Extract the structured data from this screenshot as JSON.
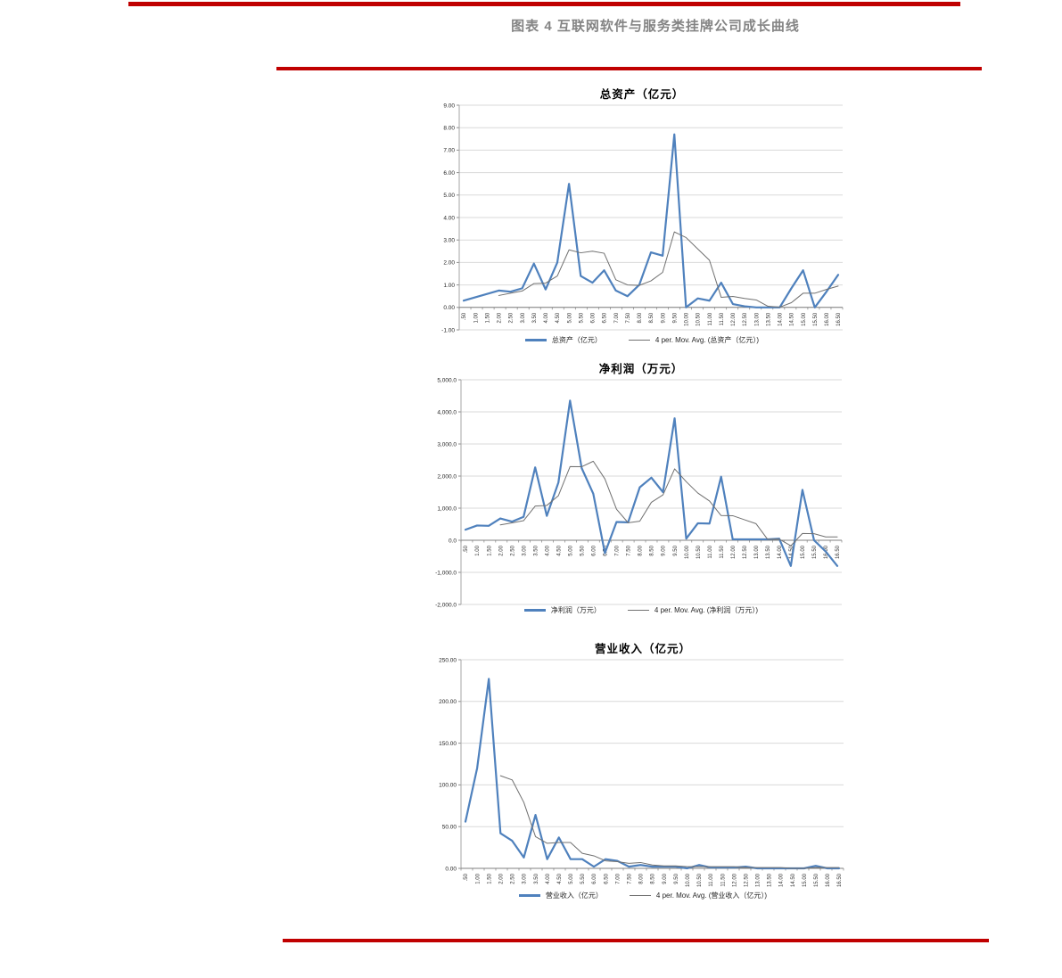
{
  "page": {
    "title": "图表 4 互联网软件与服务类挂牌公司成长曲线",
    "colors": {
      "accent_rule": "#C00000",
      "heading_text": "#848484",
      "series_blue": "#4F81BD",
      "series_gray": "#707070",
      "gridline": "#D9D9D9"
    }
  },
  "chart_data": [
    {
      "type": "line",
      "title": "总资产（亿元）",
      "xlabel": "",
      "ylabel": "",
      "ylim": [
        -1,
        9
      ],
      "grid": true,
      "legend_position": "bottom",
      "yticks": [
        {
          "v": 9,
          "label": "9.00"
        },
        {
          "v": 8,
          "label": "8.00"
        },
        {
          "v": 7,
          "label": "7.00"
        },
        {
          "v": 6,
          "label": "6.00"
        },
        {
          "v": 5,
          "label": "5.00"
        },
        {
          "v": 4,
          "label": "4.00"
        },
        {
          "v": 3,
          "label": "3.00"
        },
        {
          "v": 2,
          "label": "2.00"
        },
        {
          "v": 1,
          "label": "1.00"
        },
        {
          "v": 0,
          "label": "0.00"
        },
        {
          "v": -1,
          "label": "-1.00"
        }
      ],
      "categories": [
        ".50",
        "1.00",
        "1.50",
        "2.00",
        "2.50",
        "3.00",
        "3.50",
        "4.00",
        "4.50",
        "5.00",
        "5.50",
        "6.00",
        "6.50",
        "7.00",
        "7.50",
        "8.00",
        "8.50",
        "9.00",
        "9.50",
        "10.00",
        "10.50",
        "11.00",
        "11.50",
        "12.00",
        "12.50",
        "13.00",
        "13.50",
        "14.00",
        "14.50",
        "15.00",
        "15.50",
        "16.00",
        "16.50"
      ],
      "series": [
        {
          "name": "总资产（亿元）",
          "color": "#4F81BD",
          "width": 2.2,
          "values": [
            0.3,
            0.45,
            0.6,
            0.75,
            0.7,
            0.85,
            1.95,
            0.8,
            2.0,
            5.5,
            1.4,
            1.1,
            1.65,
            0.75,
            0.5,
            1.0,
            2.45,
            2.3,
            7.7,
            0.0,
            0.4,
            0.3,
            1.1,
            0.15,
            0.05,
            0.0,
            0.0,
            0.0,
            0.85,
            1.65,
            0.0,
            0.7,
            1.45
          ]
        },
        {
          "name": "4 per. Mov. Avg. (总资产（亿元）)",
          "color": "#707070",
          "width": 1,
          "values": [
            null,
            null,
            null,
            0.53,
            0.63,
            0.73,
            1.06,
            1.08,
            1.4,
            2.56,
            2.43,
            2.5,
            2.41,
            1.23,
            1.0,
            0.98,
            1.18,
            1.56,
            3.36,
            3.11,
            2.6,
            2.1,
            0.45,
            0.49,
            0.4,
            0.33,
            0.05,
            0.01,
            0.21,
            0.63,
            0.63,
            0.8,
            0.95
          ]
        }
      ]
    },
    {
      "type": "line",
      "title": "净利润（万元）",
      "xlabel": "",
      "ylabel": "",
      "ylim": [
        -2000,
        5000
      ],
      "grid": true,
      "legend_position": "bottom",
      "yticks": [
        {
          "v": 5000,
          "label": "5,000.0"
        },
        {
          "v": 4000,
          "label": "4,000.0"
        },
        {
          "v": 3000,
          "label": "3,000.0"
        },
        {
          "v": 2000,
          "label": "2,000.0"
        },
        {
          "v": 1000,
          "label": "1,000.0"
        },
        {
          "v": 0,
          "label": "0.0"
        },
        {
          "v": -1000,
          "label": "-1,000.0"
        },
        {
          "v": -2000,
          "label": "-2,000.0"
        }
      ],
      "categories": [
        ".50",
        "1.00",
        "1.50",
        "2.00",
        "2.50",
        "3.00",
        "3.50",
        "4.00",
        "4.50",
        "5.00",
        "5.50",
        "6.00",
        "6.50",
        "7.00",
        "7.50",
        "8.00",
        "8.50",
        "9.00",
        "9.50",
        "10.00",
        "10.50",
        "11.00",
        "11.50",
        "12.00",
        "12.50",
        "13.00",
        "13.50",
        "14.00",
        "14.50",
        "15.00",
        "15.50",
        "16.00",
        "16.50"
      ],
      "series": [
        {
          "name": "净利润（万元）",
          "color": "#4F81BD",
          "width": 2.2,
          "values": [
            330,
            460,
            450,
            680,
            580,
            730,
            2270,
            760,
            1800,
            4350,
            2250,
            1450,
            -400,
            570,
            560,
            1650,
            1950,
            1500,
            3800,
            50,
            530,
            520,
            1980,
            30,
            30,
            30,
            30,
            50,
            -800,
            1570,
            0,
            -350,
            -800
          ]
        },
        {
          "name": "4 per. Mov. Avg. (净利润（万元）)",
          "color": "#707070",
          "width": 1,
          "values": [
            null,
            null,
            null,
            480,
            542,
            610,
            1065,
            1085,
            1390,
            2295,
            2290,
            2462,
            1912,
            968,
            545,
            595,
            1182,
            1415,
            2225,
            1825,
            1470,
            1225,
            770,
            765,
            640,
            518,
            30,
            35,
            -172,
            212,
            205,
            105,
            105
          ]
        }
      ]
    },
    {
      "type": "line",
      "title": "营业收入（亿元）",
      "xlabel": "",
      "ylabel": "",
      "ylim": [
        0,
        250
      ],
      "grid": true,
      "legend_position": "bottom",
      "yticks": [
        {
          "v": 250,
          "label": "250.00"
        },
        {
          "v": 200,
          "label": "200.00"
        },
        {
          "v": 150,
          "label": "150.00"
        },
        {
          "v": 100,
          "label": "100.00"
        },
        {
          "v": 50,
          "label": "50.00"
        },
        {
          "v": 0,
          "label": "0.00"
        }
      ],
      "categories": [
        ".50",
        "1.00",
        "1.50",
        "2.00",
        "2.50",
        "3.00",
        "3.50",
        "4.00",
        "4.50",
        "5.00",
        "5.50",
        "6.00",
        "6.50",
        "7.00",
        "7.50",
        "8.00",
        "8.50",
        "9.00",
        "9.50",
        "10.00",
        "10.50",
        "11.00",
        "11.50",
        "12.00",
        "12.50",
        "13.00",
        "13.50",
        "14.00",
        "14.50",
        "15.00",
        "15.50",
        "16.00",
        "16.50"
      ],
      "series": [
        {
          "name": "营业收入（亿元）",
          "color": "#4F81BD",
          "width": 2.2,
          "values": [
            56,
            120,
            227,
            42,
            33,
            13,
            64,
            11,
            37,
            11,
            11,
            2,
            11,
            9,
            2,
            4,
            2,
            2,
            2,
            0,
            4,
            1,
            1,
            1,
            2,
            0,
            0,
            0,
            0,
            0,
            3,
            0,
            0
          ]
        },
        {
          "name": "4 per. Mov. Avg. (营业收入（亿元）)",
          "color": "#707070",
          "width": 1,
          "values": [
            null,
            null,
            null,
            111,
            106,
            79,
            38,
            30,
            31,
            31,
            18,
            15,
            9,
            8,
            6,
            7,
            4,
            3,
            3,
            2,
            2,
            2,
            2,
            2,
            1,
            1,
            1,
            1,
            0,
            0,
            1,
            1,
            1
          ]
        }
      ]
    }
  ]
}
